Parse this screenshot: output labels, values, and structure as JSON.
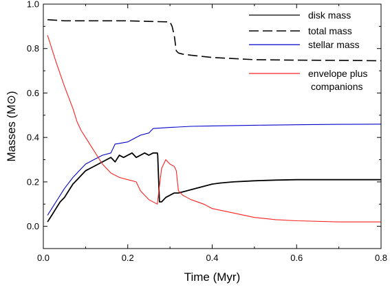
{
  "chart_data": {
    "type": "line",
    "xlabel": "Time (Myr)",
    "ylabel": "Masses (M⊙)",
    "xlim": [
      0.0,
      0.8
    ],
    "ylim": [
      -0.1,
      1.0
    ],
    "xticks": [
      0.0,
      0.2,
      0.4,
      0.6,
      0.8
    ],
    "xtick_labels": [
      "0.0",
      "0.2",
      "0.4",
      "0.6",
      "0.8"
    ],
    "yticks": [
      0.0,
      0.2,
      0.4,
      0.6,
      0.8,
      1.0
    ],
    "ytick_labels": [
      "0.0",
      "0.2",
      "0.4",
      "0.6",
      "0.8",
      "1.0"
    ],
    "grid": false,
    "legend_position": "top-right",
    "series": [
      {
        "name": "disk mass",
        "color": "#000000",
        "style": "solid",
        "x": [
          0.01,
          0.02,
          0.03,
          0.04,
          0.05,
          0.06,
          0.07,
          0.08,
          0.09,
          0.1,
          0.11,
          0.12,
          0.13,
          0.14,
          0.15,
          0.16,
          0.17,
          0.18,
          0.19,
          0.2,
          0.21,
          0.22,
          0.23,
          0.24,
          0.25,
          0.26,
          0.27,
          0.271,
          0.275,
          0.28,
          0.29,
          0.3,
          0.31,
          0.32,
          0.34,
          0.36,
          0.38,
          0.4,
          0.42,
          0.45,
          0.5,
          0.55,
          0.6,
          0.65,
          0.7,
          0.75,
          0.8
        ],
        "y": [
          0.02,
          0.05,
          0.08,
          0.11,
          0.13,
          0.16,
          0.19,
          0.21,
          0.23,
          0.25,
          0.26,
          0.27,
          0.28,
          0.29,
          0.3,
          0.31,
          0.29,
          0.32,
          0.31,
          0.32,
          0.33,
          0.31,
          0.32,
          0.33,
          0.32,
          0.33,
          0.33,
          0.32,
          0.11,
          0.11,
          0.13,
          0.14,
          0.15,
          0.15,
          0.16,
          0.17,
          0.18,
          0.19,
          0.195,
          0.2,
          0.205,
          0.208,
          0.21,
          0.21,
          0.21,
          0.21,
          0.21
        ]
      },
      {
        "name": "total mass",
        "color": "#000000",
        "style": "dashed",
        "x": [
          0.01,
          0.05,
          0.1,
          0.15,
          0.2,
          0.25,
          0.3,
          0.305,
          0.31,
          0.315,
          0.32,
          0.33,
          0.35,
          0.4,
          0.45,
          0.5,
          0.6,
          0.7,
          0.8
        ],
        "y": [
          0.93,
          0.925,
          0.925,
          0.925,
          0.925,
          0.922,
          0.92,
          0.9,
          0.86,
          0.79,
          0.78,
          0.775,
          0.77,
          0.76,
          0.755,
          0.75,
          0.748,
          0.747,
          0.745
        ]
      },
      {
        "name": "stellar mass",
        "color": "#0000cc",
        "style": "solid",
        "x": [
          0.01,
          0.02,
          0.03,
          0.05,
          0.07,
          0.09,
          0.1,
          0.12,
          0.14,
          0.16,
          0.17,
          0.2,
          0.21,
          0.23,
          0.25,
          0.26,
          0.3,
          0.35,
          0.4,
          0.5,
          0.6,
          0.7,
          0.8
        ],
        "y": [
          0.05,
          0.08,
          0.11,
          0.17,
          0.22,
          0.26,
          0.28,
          0.3,
          0.32,
          0.33,
          0.37,
          0.38,
          0.39,
          0.41,
          0.42,
          0.44,
          0.445,
          0.45,
          0.452,
          0.455,
          0.457,
          0.459,
          0.46
        ]
      },
      {
        "name": "envelope plus\ncompanions",
        "color": "#ff2020",
        "style": "solid",
        "x": [
          0.01,
          0.03,
          0.05,
          0.07,
          0.08,
          0.09,
          0.1,
          0.12,
          0.14,
          0.16,
          0.18,
          0.2,
          0.22,
          0.23,
          0.24,
          0.25,
          0.27,
          0.28,
          0.29,
          0.3,
          0.31,
          0.315,
          0.32,
          0.33,
          0.35,
          0.38,
          0.4,
          0.45,
          0.5,
          0.55,
          0.6,
          0.7,
          0.8
        ],
        "y": [
          0.86,
          0.74,
          0.63,
          0.53,
          0.47,
          0.43,
          0.4,
          0.34,
          0.28,
          0.24,
          0.22,
          0.21,
          0.2,
          0.16,
          0.14,
          0.12,
          0.1,
          0.26,
          0.3,
          0.28,
          0.27,
          0.25,
          0.16,
          0.14,
          0.12,
          0.1,
          0.08,
          0.06,
          0.04,
          0.03,
          0.025,
          0.02,
          0.02
        ]
      }
    ],
    "legend": [
      {
        "label": "disk mass",
        "series": 0
      },
      {
        "label": "total mass",
        "series": 1
      },
      {
        "label": "stellar mass",
        "series": 2
      },
      {
        "label_line1": "envelope plus",
        "label_line2": "companions",
        "series": 3
      }
    ]
  }
}
